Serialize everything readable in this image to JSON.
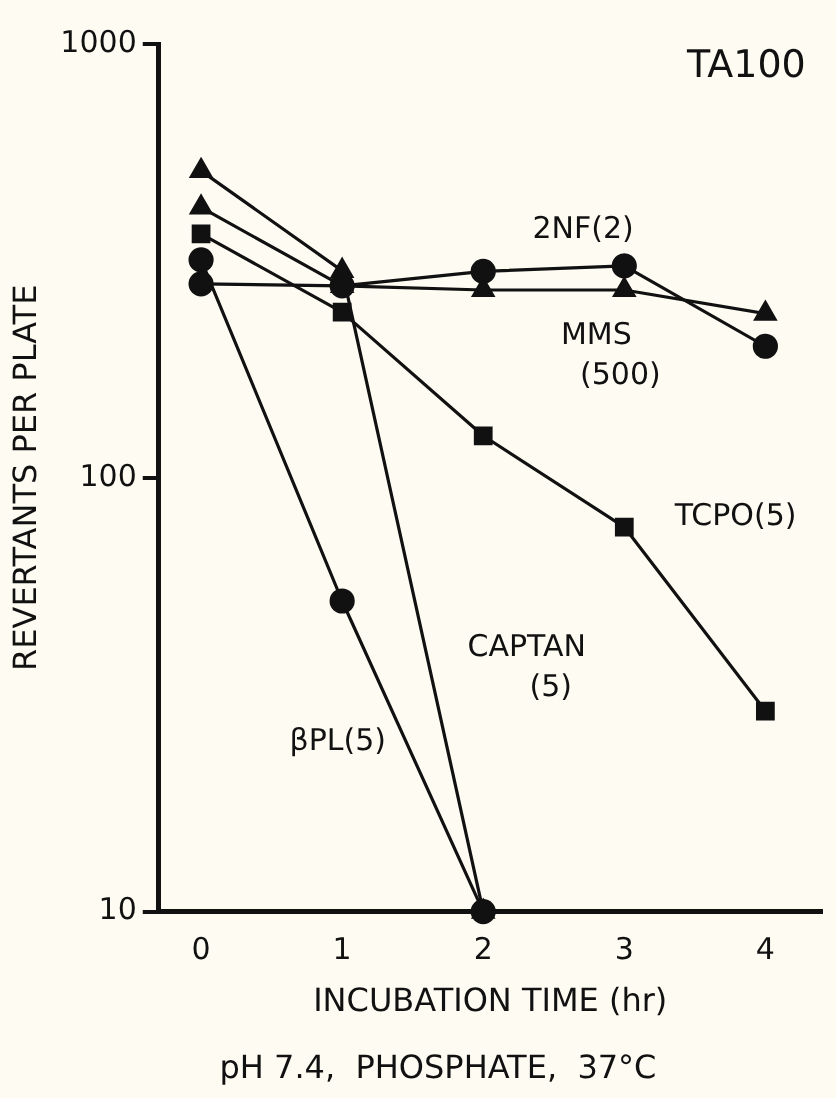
{
  "chart_data": {
    "type": "line",
    "title": "TA100",
    "xlabel": "INCUBATION TIME (hr)",
    "ylabel": "REVERTANTS PER PLATE",
    "annotations": [
      "pH 7.4,  PHOSPHATE,  37°C"
    ],
    "x": [
      0,
      1,
      2,
      3,
      4
    ],
    "xlim": [
      -0.3,
      4.4
    ],
    "xticks": [
      0,
      1,
      2,
      3,
      4
    ],
    "log": "y",
    "ylim": [
      10,
      1000
    ],
    "yticks": [
      10,
      100,
      1000
    ],
    "grid": false,
    "legend": false,
    "line_style": "solid",
    "series": [
      {
        "name": "2NF(2)",
        "color": "#111111",
        "marker": "circle",
        "values": [
          280,
          277,
          299,
          308,
          201
        ]
      },
      {
        "name": "MMS (500)",
        "color": "#111111",
        "marker": "triangle",
        "values": [
          420,
          277,
          271,
          271,
          239
        ]
      },
      {
        "name": "TCPO(5)",
        "color": "#111111",
        "marker": "square",
        "values": [
          365,
          241,
          125,
          77,
          29
        ]
      },
      {
        "name": "CAPTAN (5)",
        "color": "#111111",
        "marker": "triangle",
        "values": [
          510,
          300,
          10,
          null,
          null
        ]
      },
      {
        "name": "βPL(5)",
        "color": "#111111",
        "marker": "circle",
        "values": [
          318,
          52,
          10,
          null,
          null
        ]
      }
    ]
  }
}
